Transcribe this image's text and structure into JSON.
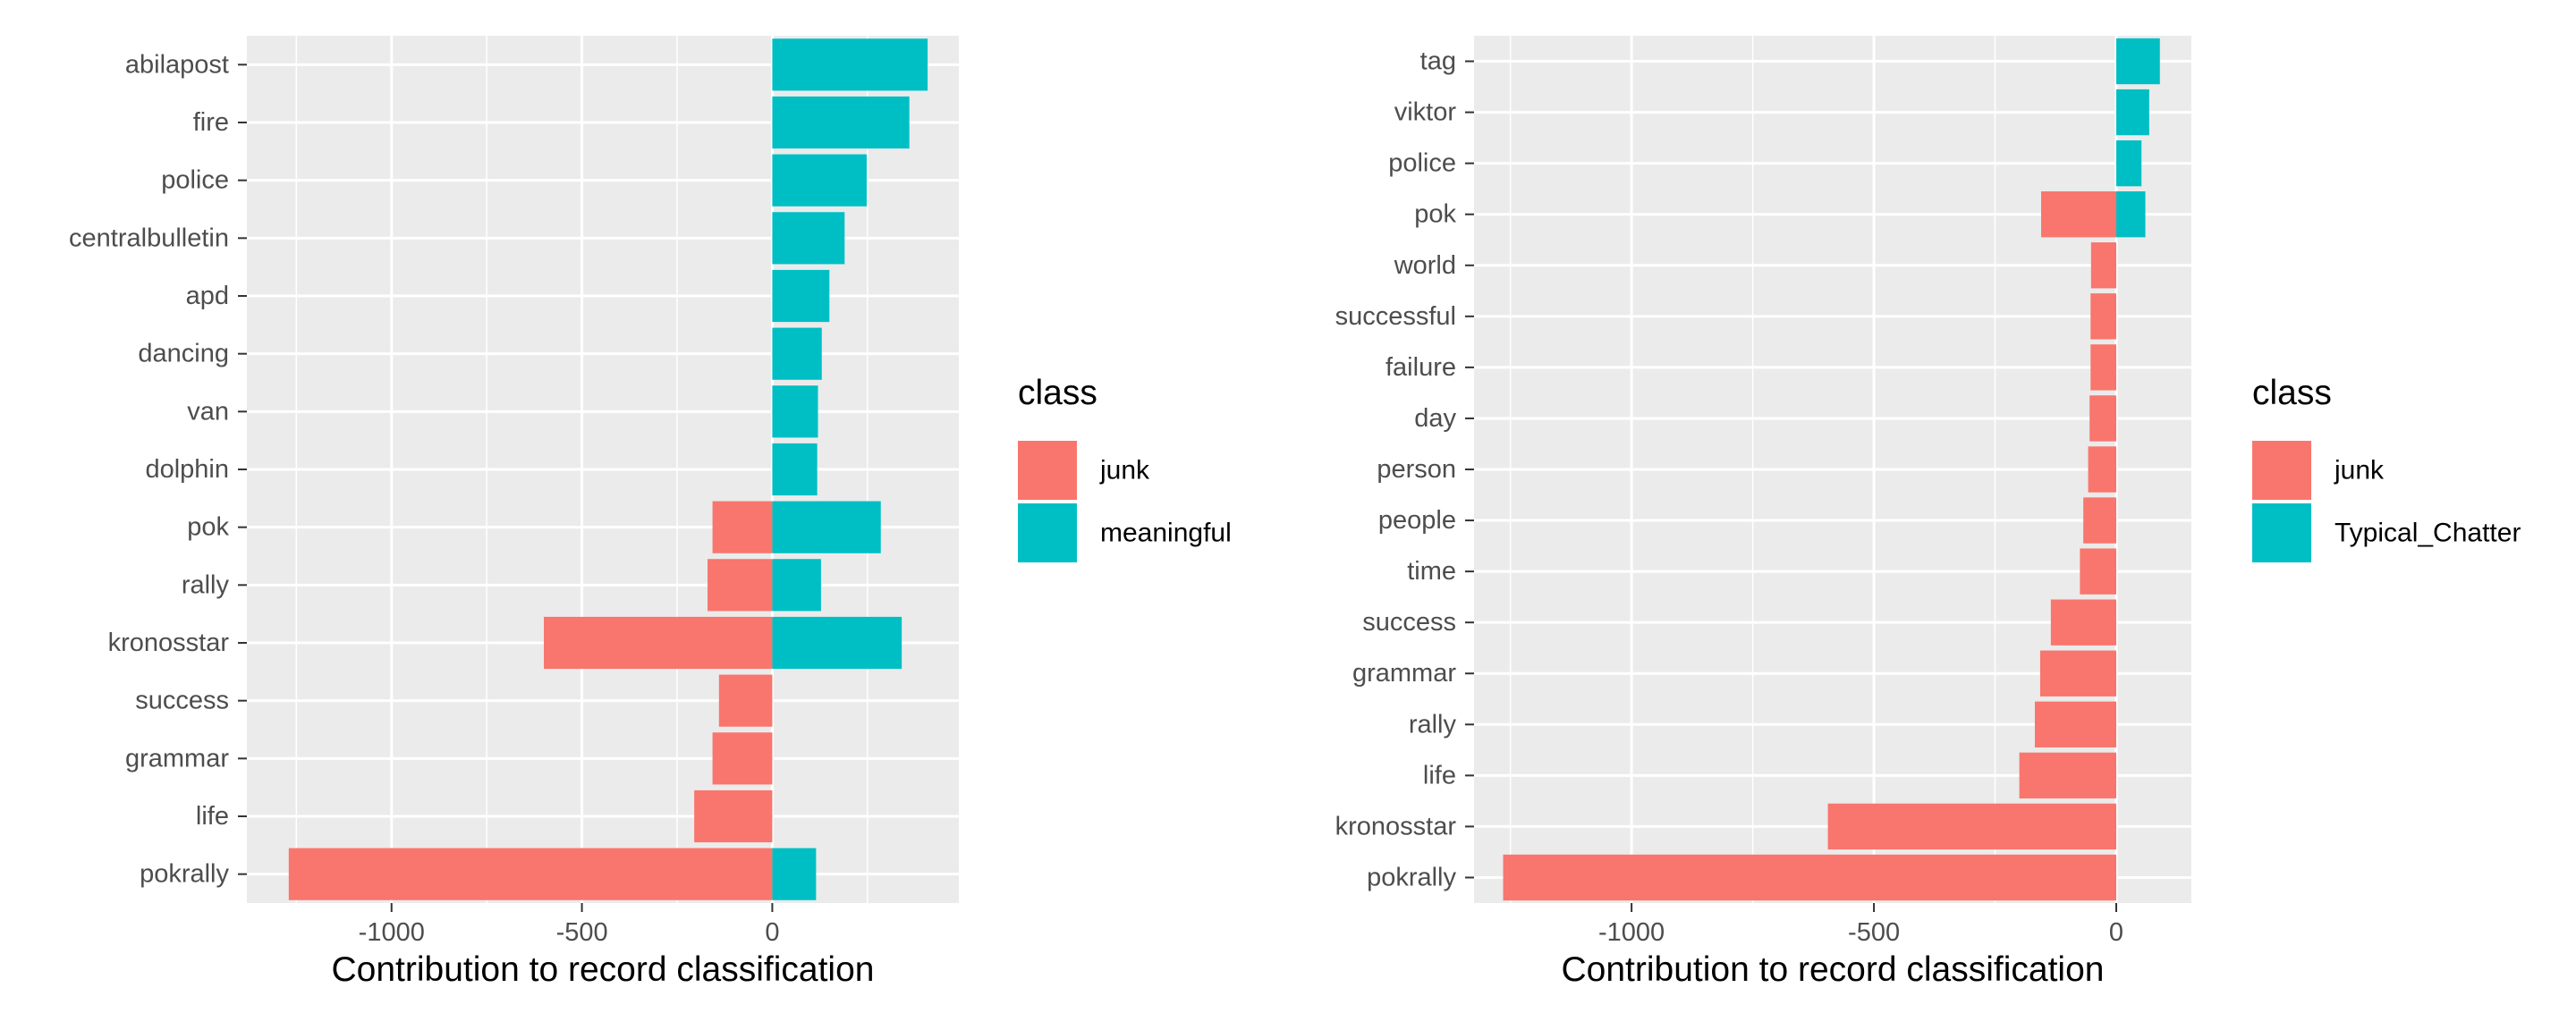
{
  "colors": {
    "panel_bg": "#EBEBEB",
    "grid": "#FFFFFF",
    "tick": "#333333",
    "text": "#4D4D4D",
    "junk": "#F8766D",
    "positive": "#00BFC4"
  },
  "chart_data": [
    {
      "type": "bar",
      "orientation": "horizontal",
      "stacked": true,
      "xlabel": "Contribution to record classification",
      "ylabel": "",
      "xlim": [
        -1380,
        490
      ],
      "xticks": [
        -1000,
        -500,
        0
      ],
      "xtick_labels": [
        "-1000",
        "-500",
        "0"
      ],
      "grid": true,
      "legend_position": "right",
      "legend": {
        "title": "class",
        "entries": [
          {
            "label": "junk",
            "color": "#F8766D"
          },
          {
            "label": "meaningful",
            "color": "#00BFC4"
          }
        ]
      },
      "categories": [
        "abilapost",
        "fire",
        "police",
        "centralbulletin",
        "apd",
        "dancing",
        "van",
        "dolphin",
        "pok",
        "rally",
        "kronosstar",
        "success",
        "grammar",
        "life",
        "pokrally"
      ],
      "series": [
        {
          "name": "junk",
          "color": "#F8766D",
          "values": [
            0,
            0,
            0,
            0,
            0,
            0,
            0,
            0,
            -157,
            -170,
            -600,
            -140,
            -157,
            -205,
            -1270
          ]
        },
        {
          "name": "meaningful",
          "color": "#00BFC4",
          "values": [
            408,
            360,
            248,
            190,
            150,
            130,
            120,
            118,
            285,
            128,
            340,
            0,
            0,
            0,
            115
          ]
        }
      ]
    },
    {
      "type": "bar",
      "orientation": "horizontal",
      "stacked": true,
      "xlabel": "Contribution to record classification",
      "ylabel": "",
      "xlim": [
        -1325,
        155
      ],
      "xticks": [
        -1000,
        -500,
        0
      ],
      "xtick_labels": [
        "-1000",
        "-500",
        "0"
      ],
      "grid": true,
      "legend_position": "right",
      "legend": {
        "title": "class",
        "entries": [
          {
            "label": "junk",
            "color": "#F8766D"
          },
          {
            "label": "Typical_Chatter",
            "color": "#00BFC4"
          }
        ]
      },
      "categories": [
        "tag",
        "viktor",
        "police",
        "pok",
        "world",
        "successful",
        "failure",
        "day",
        "person",
        "people",
        "time",
        "success",
        "grammar",
        "rally",
        "life",
        "kronosstar",
        "pokrally"
      ],
      "series": [
        {
          "name": "junk",
          "color": "#F8766D",
          "values": [
            0,
            0,
            0,
            -155,
            -52,
            -53,
            -53,
            -55,
            -58,
            -68,
            -75,
            -135,
            -157,
            -168,
            -200,
            -595,
            -1265
          ]
        },
        {
          "name": "Typical_Chatter",
          "color": "#00BFC4",
          "values": [
            90,
            68,
            52,
            60,
            0,
            0,
            0,
            0,
            0,
            0,
            0,
            0,
            0,
            0,
            0,
            0,
            0
          ]
        }
      ]
    }
  ]
}
